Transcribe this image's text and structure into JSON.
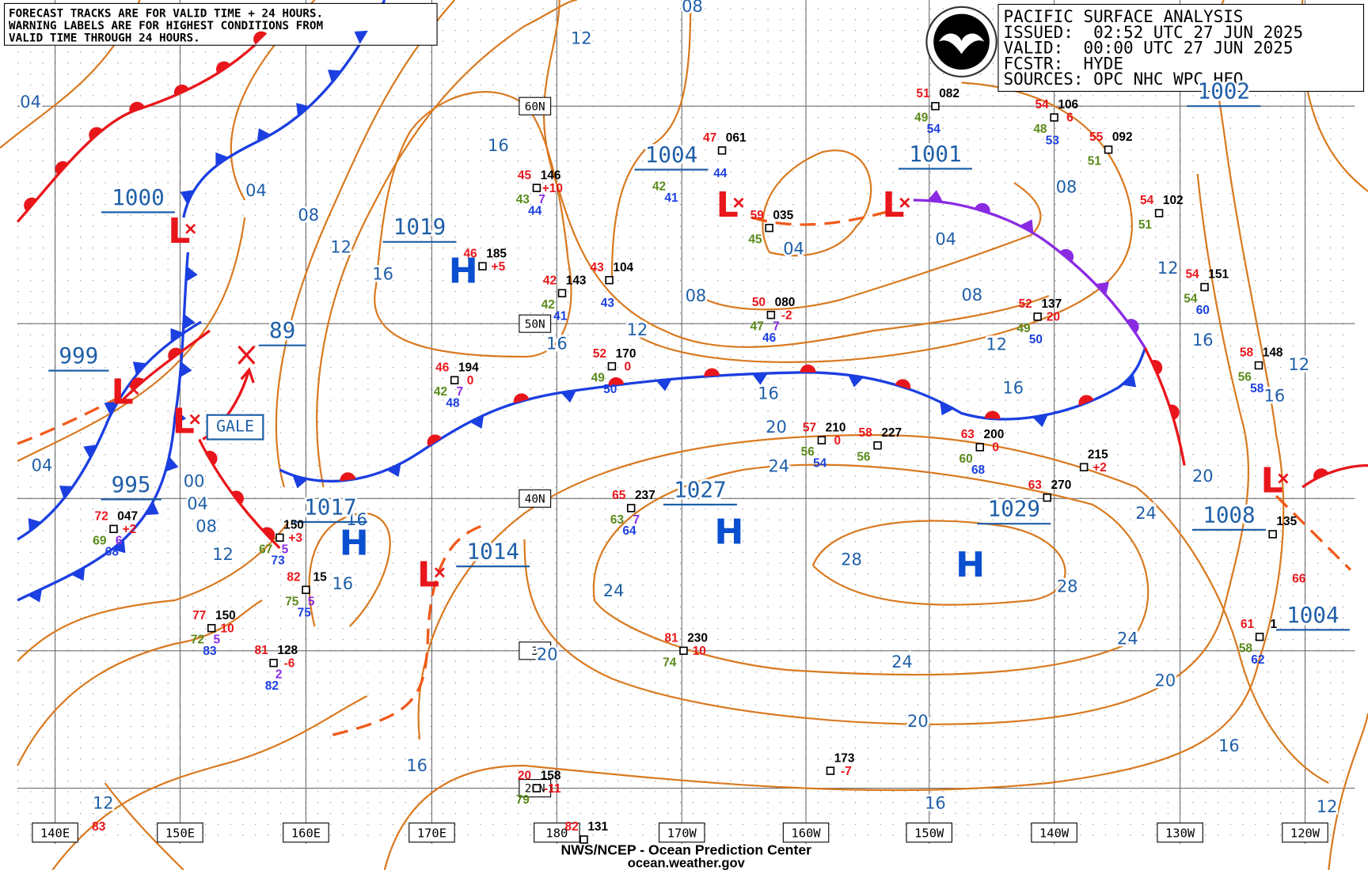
{
  "header": {
    "warning": [
      "FORECAST TRACKS ARE FOR VALID TIME + 24 HOURS.",
      "WARNING LABELS ARE FOR HIGHEST CONDITIONS FROM",
      "VALID TIME THROUGH 24 HOURS."
    ]
  },
  "info": {
    "title": "PACIFIC SURFACE ANALYSIS",
    "issued": "ISSUED:  02:52 UTC 27 JUN 2025",
    "valid": "VALID:  00:00 UTC 27 JUN 2025",
    "forecaster": "FCSTR:  HYDE",
    "sources": "SOURCES: OPC NHC WPC HFO"
  },
  "longitudes": [
    "140E",
    "150E",
    "160E",
    "170E",
    "180",
    "170W",
    "160W",
    "150W",
    "140W",
    "130W",
    "120W"
  ],
  "latitudes": [
    "60N",
    "50N",
    "40N",
    "3",
    "20N"
  ],
  "isobar_labels": [
    "04",
    "04",
    "08",
    "12",
    "16",
    "04",
    "00",
    "04",
    "08",
    "12",
    "16",
    "16",
    "16",
    "12",
    "08",
    "16",
    "12",
    "08",
    "04",
    "04",
    "08",
    "12",
    "16",
    "16",
    "20",
    "24",
    "08",
    "12",
    "16",
    "12",
    "16",
    "20",
    "24",
    "28",
    "28",
    "24",
    "24",
    "24",
    "20",
    "20",
    "20",
    "16",
    "16",
    "16",
    "12",
    "12"
  ],
  "center_pressures": [
    "1000",
    "999",
    "995",
    "89",
    "1017",
    "1019",
    "1014",
    "1004",
    "1001",
    "1027",
    "1029",
    "1008",
    "1004",
    "1002"
  ],
  "systems": [
    "H",
    "H",
    "H",
    "H",
    "L",
    "L",
    "L",
    "L",
    "L",
    "L",
    "L"
  ],
  "gale": "GALE",
  "stations": [
    {
      "t": "72",
      "p": "047",
      "c": "+2",
      "d": "69",
      "w": "6",
      "v": "68"
    },
    {
      "p": "150",
      "c": "+3",
      "d": "67",
      "w": "5",
      "v": "73"
    },
    {
      "t": "82",
      "p": "15",
      "d": "75",
      "w": "5",
      "v": "75"
    },
    {
      "t": "77",
      "p": "150",
      "c": "10",
      "d": "72",
      "w": "5",
      "v": "83"
    },
    {
      "t": "81",
      "p": "128",
      "c": "-6",
      "w": "2",
      "v": "82"
    },
    {
      "t": "46",
      "p": "185",
      "c": "+5"
    },
    {
      "t": "45",
      "p": "146",
      "c": "+10",
      "d": "43",
      "w": "7",
      "v": "44"
    },
    {
      "t": "42",
      "p": "143",
      "d": "42",
      "v": "41"
    },
    {
      "t": "43",
      "p": "104",
      "v": "43"
    },
    {
      "t": "46",
      "p": "194",
      "c": "0",
      "d": "42",
      "w": "7",
      "v": "48"
    },
    {
      "t": "52",
      "p": "170",
      "c": "0",
      "d": "49",
      "v": "50"
    },
    {
      "t": "65",
      "p": "237",
      "d": "63",
      "w": "7",
      "v": "64"
    },
    {
      "t": "81",
      "p": "230",
      "c": "10",
      "d": "74"
    },
    {
      "d": "42",
      "v": "41"
    },
    {
      "t": "47",
      "p": "061",
      "v": "44"
    },
    {
      "t": "59",
      "p": "035",
      "d": "45"
    },
    {
      "t": "50",
      "p": "080",
      "c": "-2",
      "d": "47",
      "w": "7",
      "v": "46"
    },
    {
      "t": "57",
      "p": "210",
      "c": "0",
      "d": "56",
      "v": "54"
    },
    {
      "t": "58",
      "p": "227",
      "d": "56"
    },
    {
      "t": "63",
      "p": "200",
      "c": "0",
      "d": "60",
      "v": "68"
    },
    {
      "t": "52",
      "p": "137",
      "c": "20",
      "d": "49",
      "v": "50"
    },
    {
      "p": "215",
      "c": "+2"
    },
    {
      "t": "63",
      "p": "270"
    },
    {
      "t": "51",
      "p": "082",
      "d": "49",
      "v": "54"
    },
    {
      "t": "54",
      "p": "106",
      "c": "6",
      "d": "48",
      "v": "53"
    },
    {
      "t": "55",
      "p": "092",
      "d": "51"
    },
    {
      "t": "54",
      "p": "102",
      "d": "51"
    },
    {
      "t": "54",
      "p": "151",
      "d": "54",
      "v": "60"
    },
    {
      "t": "58",
      "p": "148",
      "d": "56",
      "v": "58"
    },
    {
      "p": "135"
    },
    {
      "t": "61",
      "p": "1",
      "d": "58",
      "v": "62"
    },
    {
      "p": "173",
      "c": "-7"
    },
    {
      "t": "20",
      "p": "158",
      "c": "-11",
      "d": "79"
    },
    {
      "t": "82",
      "p": "131"
    },
    {
      "t": "66"
    },
    {
      "t": "83"
    }
  ],
  "footer": [
    "NWS/NCEP - Ocean Prediction Center",
    "ocean.weather.gov"
  ]
}
